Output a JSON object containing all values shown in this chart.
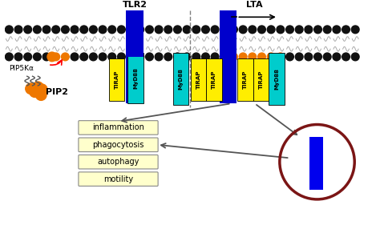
{
  "bg_color": "#ffffff",
  "tlr2_color": "#0000cc",
  "tirap_color": "#ffee00",
  "myd88_color": "#00cccc",
  "membrane_dot_color": "#111111",
  "orange_color": "#ee7700",
  "outcome_box_color": "#ffffcc",
  "outcome_labels": [
    "inflammation",
    "phagocytosis",
    "autophagy",
    "motility"
  ],
  "circle_color": "#7b1515",
  "receptor_color": "#0000ee",
  "arrow_color": "#555555"
}
